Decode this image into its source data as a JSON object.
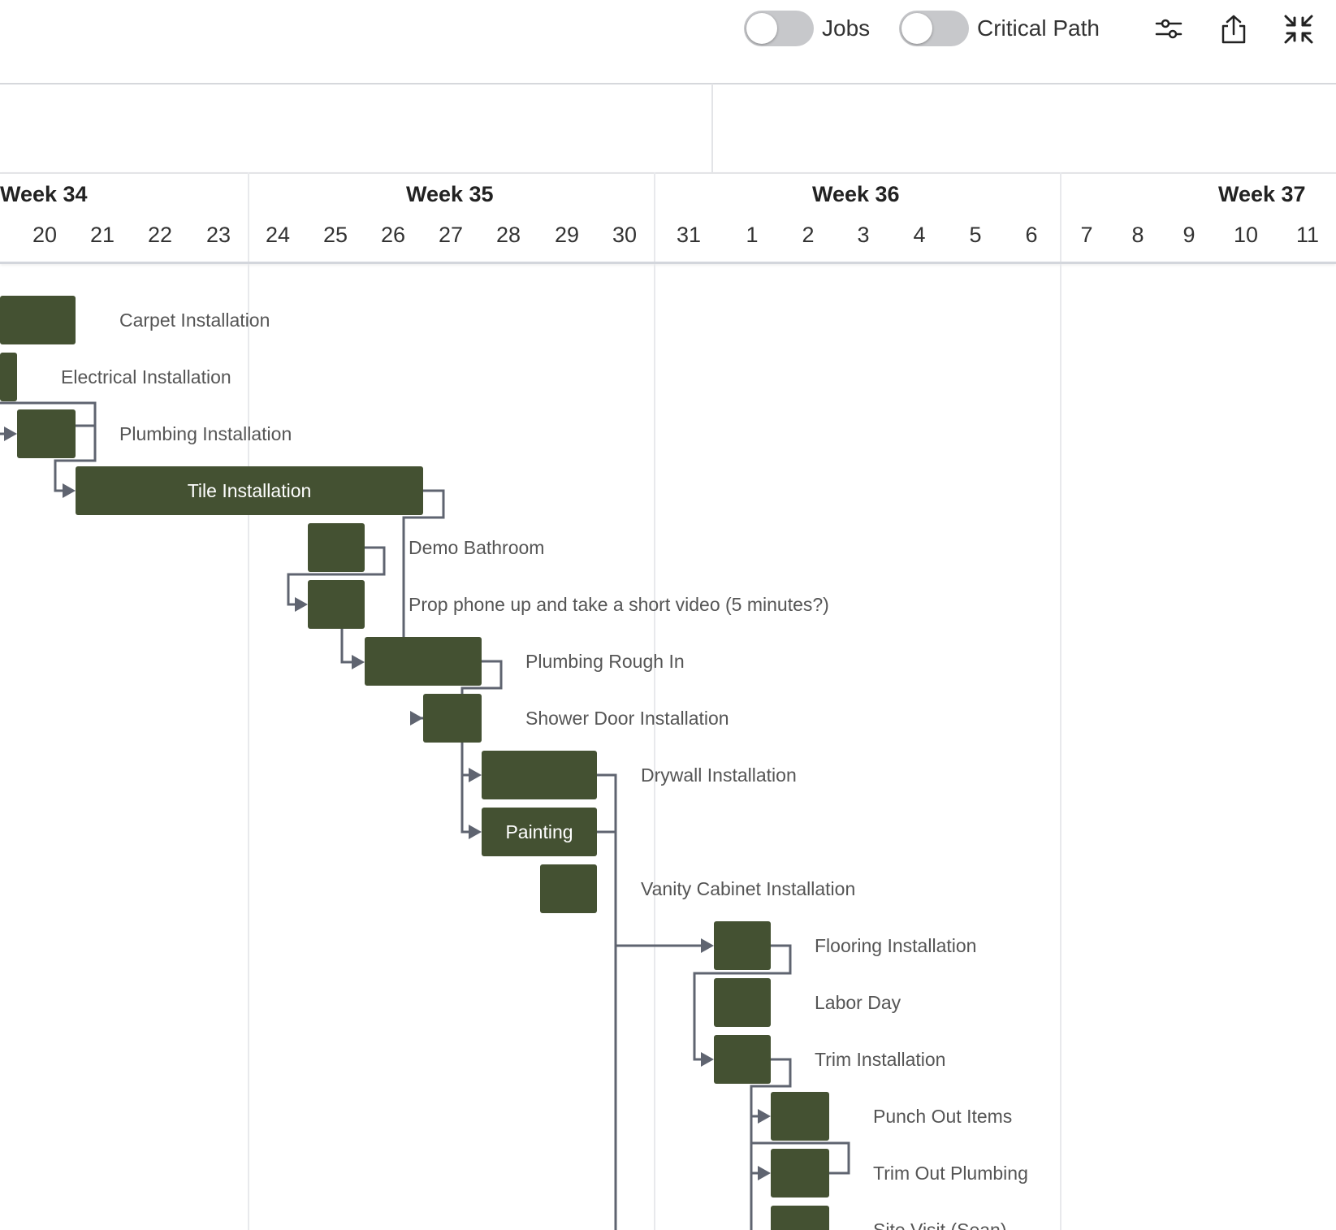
{
  "toolbar": {
    "jobs_toggle": {
      "label": "Jobs",
      "on": false
    },
    "critical_path_toggle": {
      "label": "Critical Path",
      "on": false
    },
    "icons": [
      "filter-sliders-icon",
      "share-upload-icon",
      "collapse-arrows-icon"
    ]
  },
  "timeline": {
    "weeks": [
      "Week 34",
      "Week 35",
      "Week 36",
      "Week 37"
    ],
    "days": [
      "20",
      "21",
      "22",
      "23",
      "24",
      "25",
      "26",
      "27",
      "28",
      "29",
      "30",
      "31",
      "1",
      "2",
      "3",
      "4",
      "5",
      "6",
      "7",
      "8",
      "9",
      "10",
      "11"
    ]
  },
  "colors": {
    "bar": "#445132",
    "link": "#5f6470",
    "grid": "#e8e9ec"
  },
  "tasks": [
    {
      "name": "Carpet Installation",
      "label_inside": false
    },
    {
      "name": "Electrical Installation",
      "label_inside": false
    },
    {
      "name": "Plumbing Installation",
      "label_inside": false
    },
    {
      "name": "Tile Installation",
      "label_inside": true
    },
    {
      "name": "Demo Bathroom",
      "label_inside": false
    },
    {
      "name": "Prop phone up and take a short video (5 minutes?)",
      "label_inside": false
    },
    {
      "name": "Plumbing Rough In",
      "label_inside": false
    },
    {
      "name": "Shower Door Installation",
      "label_inside": false
    },
    {
      "name": "Drywall Installation",
      "label_inside": false
    },
    {
      "name": "Painting",
      "label_inside": true
    },
    {
      "name": "Vanity Cabinet Installation",
      "label_inside": false
    },
    {
      "name": "Flooring Installation",
      "label_inside": false
    },
    {
      "name": "Labor Day",
      "label_inside": false
    },
    {
      "name": "Trim Installation",
      "label_inside": false
    },
    {
      "name": "Punch Out Items",
      "label_inside": false
    },
    {
      "name": "Trim Out Plumbing",
      "label_inside": false
    },
    {
      "name": "Site Visit (Sean)",
      "label_inside": false
    }
  ]
}
